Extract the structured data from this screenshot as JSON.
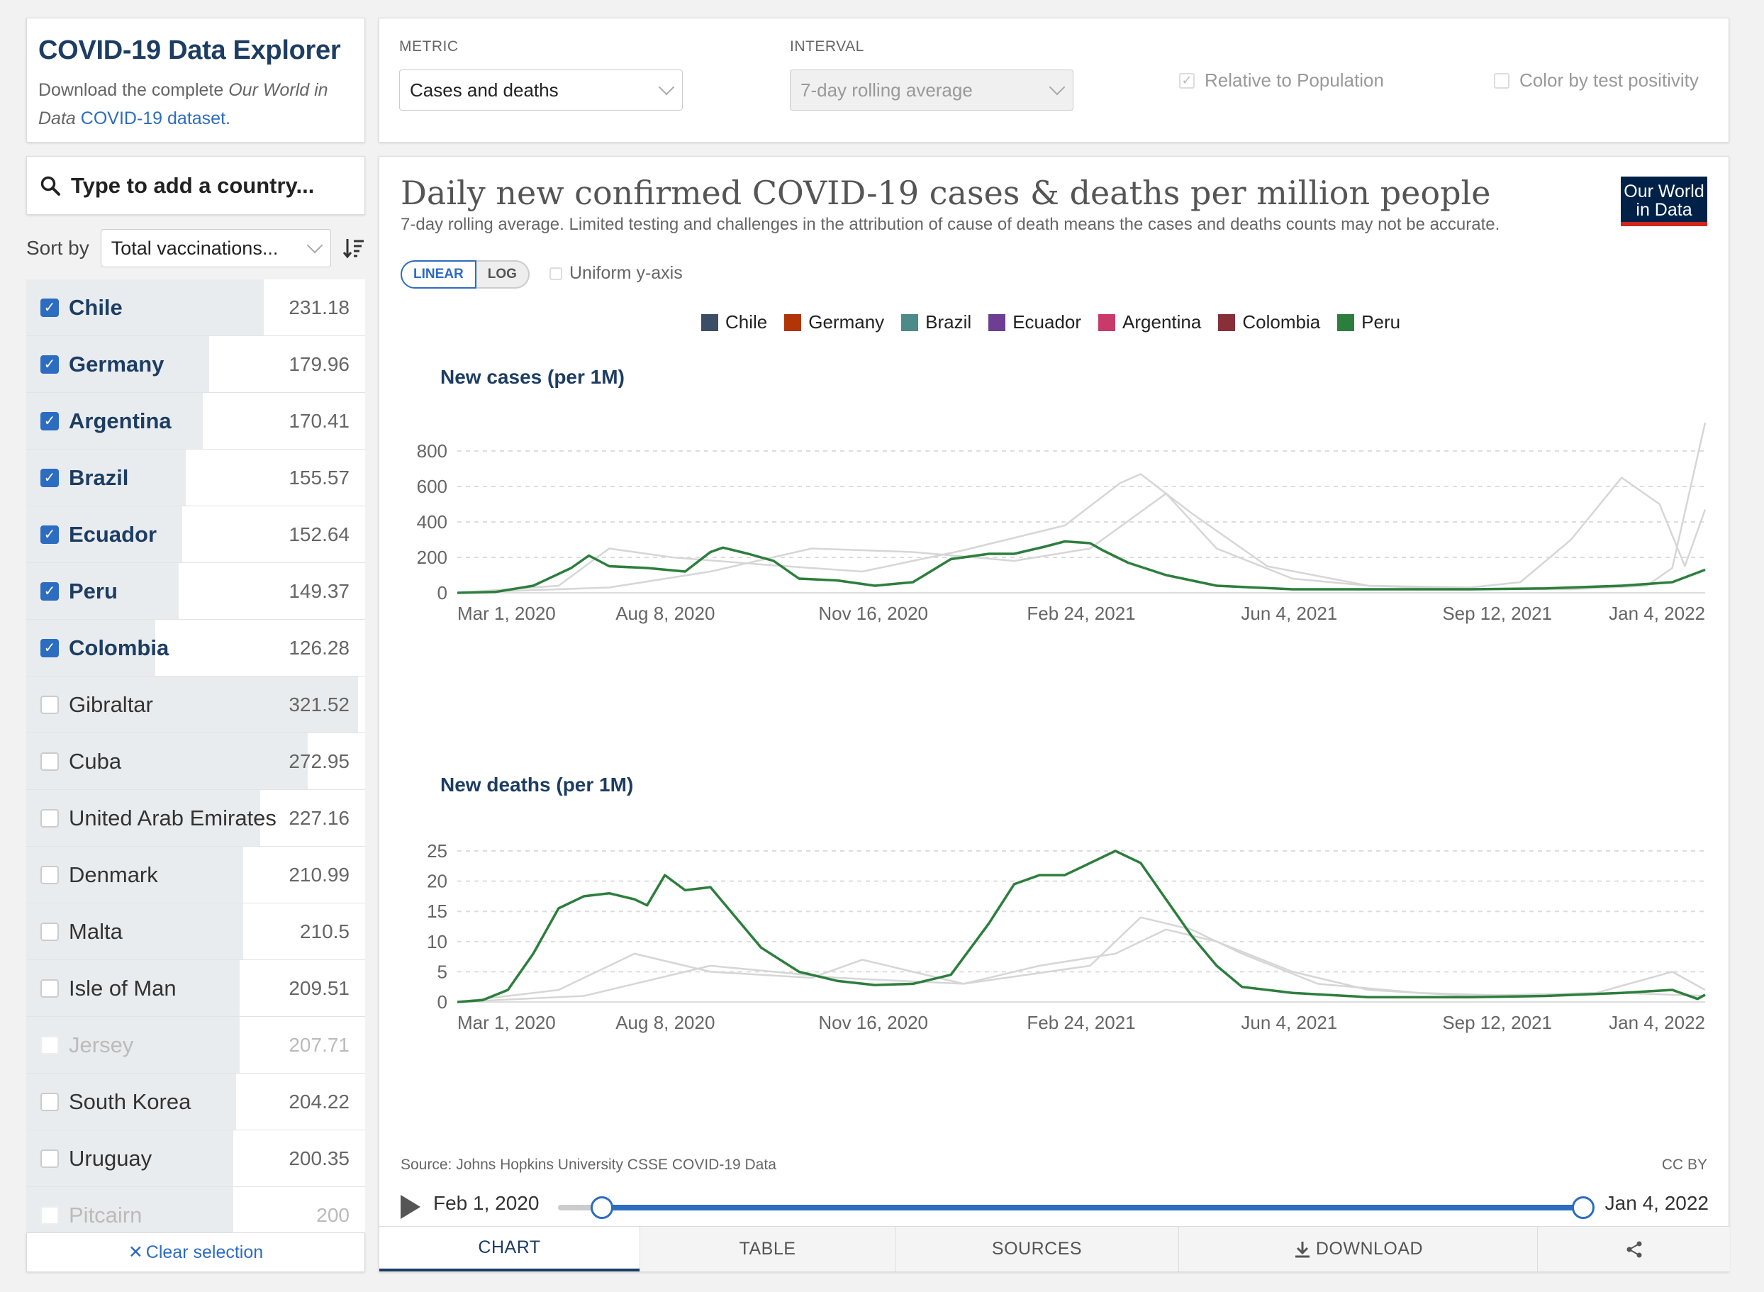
{
  "app": {
    "title": "COVID-19 Data Explorer",
    "desc_prefix": "Download the complete ",
    "desc_italic": "Our World in Data",
    "desc_link": "COVID-19 dataset."
  },
  "controls": {
    "metric_label": "METRIC",
    "metric_value": "Cases and deaths",
    "interval_label": "INTERVAL",
    "interval_value": "7-day rolling average",
    "relative_label": "Relative to Population",
    "positivity_label": "Color by test positivity"
  },
  "search": {
    "placeholder": "Type to add a country..."
  },
  "sort": {
    "label": "Sort by",
    "value": "Total vaccinations..."
  },
  "countries": [
    {
      "name": "Chile",
      "value": "231.18",
      "checked": true,
      "faded": false,
      "bar": 0.7
    },
    {
      "name": "Germany",
      "value": "179.96",
      "checked": true,
      "faded": false,
      "bar": 0.54
    },
    {
      "name": "Argentina",
      "value": "170.41",
      "checked": true,
      "faded": false,
      "bar": 0.52
    },
    {
      "name": "Brazil",
      "value": "155.57",
      "checked": true,
      "faded": false,
      "bar": 0.47
    },
    {
      "name": "Ecuador",
      "value": "152.64",
      "checked": true,
      "faded": false,
      "bar": 0.46
    },
    {
      "name": "Peru",
      "value": "149.37",
      "checked": true,
      "faded": false,
      "bar": 0.45
    },
    {
      "name": "Colombia",
      "value": "126.28",
      "checked": true,
      "faded": false,
      "bar": 0.38
    },
    {
      "name": "Gibraltar",
      "value": "321.52",
      "checked": false,
      "faded": false,
      "bar": 0.98
    },
    {
      "name": "Cuba",
      "value": "272.95",
      "checked": false,
      "faded": false,
      "bar": 0.83
    },
    {
      "name": "United Arab Emirates",
      "value": "227.16",
      "checked": false,
      "faded": false,
      "bar": 0.69
    },
    {
      "name": "Denmark",
      "value": "210.99",
      "checked": false,
      "faded": false,
      "bar": 0.64
    },
    {
      "name": "Malta",
      "value": "210.5",
      "checked": false,
      "faded": false,
      "bar": 0.64
    },
    {
      "name": "Isle of Man",
      "value": "209.51",
      "checked": false,
      "faded": false,
      "bar": 0.63
    },
    {
      "name": "Jersey",
      "value": "207.71",
      "checked": false,
      "faded": true,
      "bar": 0.63
    },
    {
      "name": "South Korea",
      "value": "204.22",
      "checked": false,
      "faded": false,
      "bar": 0.62
    },
    {
      "name": "Uruguay",
      "value": "200.35",
      "checked": false,
      "faded": false,
      "bar": 0.61
    },
    {
      "name": "Pitcairn",
      "value": "200",
      "checked": false,
      "faded": true,
      "bar": 0.61
    }
  ],
  "clear_selection": "Clear selection",
  "chart": {
    "title": "Daily new confirmed COVID-19 cases & deaths per million people",
    "subtitle": "7-day rolling average. Limited testing and challenges in the attribution of cause of death means the cases and deaths counts may not be accurate.",
    "logo_line1": "Our World",
    "logo_line2": "in Data",
    "linear_label": "LINEAR",
    "log_label": "LOG",
    "uniform_label": "Uniform y-axis",
    "legend": [
      {
        "name": "Chile",
        "color": "#3c4e66"
      },
      {
        "name": "Germany",
        "color": "#b13507"
      },
      {
        "name": "Brazil",
        "color": "#4c8b87"
      },
      {
        "name": "Ecuador",
        "color": "#6d3e91"
      },
      {
        "name": "Argentina",
        "color": "#c93a6b"
      },
      {
        "name": "Colombia",
        "color": "#883039"
      },
      {
        "name": "Peru",
        "color": "#2c7e3d"
      }
    ],
    "source": "Source: Johns Hopkins University CSSE COVID-19 Data",
    "license": "CC BY",
    "timeline_start": "Feb 1, 2020",
    "timeline_end": "Jan 4, 2022"
  },
  "chart_data": [
    {
      "type": "line",
      "title": "New cases (per 1M)",
      "ylim": [
        0,
        900
      ],
      "yticks": [
        0,
        200,
        400,
        600,
        800
      ],
      "xticks": [
        "Mar 1, 2020",
        "Aug 8, 2020",
        "Nov 16, 2020",
        "Feb 24, 2021",
        "Jun 4, 2021",
        "Sep 12, 2021",
        "Jan 4, 2022"
      ],
      "highlight_series": "Peru",
      "series": [
        {
          "name": "Peru",
          "x": [
            0,
            15,
            30,
            45,
            52,
            60,
            75,
            90,
            100,
            105,
            115,
            125,
            135,
            150,
            165,
            180,
            195,
            210,
            220,
            232,
            240,
            250,
            255,
            265,
            280,
            300,
            330,
            360,
            400,
            430,
            460,
            480,
            493
          ],
          "y": [
            0,
            5,
            40,
            140,
            210,
            150,
            140,
            120,
            230,
            255,
            220,
            180,
            80,
            70,
            40,
            60,
            190,
            220,
            220,
            260,
            290,
            280,
            240,
            170,
            100,
            40,
            20,
            20,
            20,
            25,
            40,
            60,
            130
          ]
        },
        {
          "name": "Chile",
          "x": [
            0,
            40,
            60,
            85,
            120,
            160,
            200,
            240,
            262,
            270,
            290,
            320,
            360,
            400,
            420,
            440,
            460,
            475,
            485,
            493
          ],
          "y": [
            0,
            40,
            250,
            200,
            160,
            120,
            240,
            380,
            620,
            670,
            450,
            150,
            40,
            30,
            60,
            300,
            650,
            500,
            150,
            470
          ]
        },
        {
          "name": "Argentina",
          "x": [
            0,
            60,
            100,
            140,
            180,
            220,
            250,
            280,
            300,
            330,
            360,
            400,
            440,
            470,
            480,
            493
          ],
          "y": [
            0,
            30,
            120,
            250,
            230,
            180,
            250,
            560,
            250,
            80,
            40,
            20,
            20,
            40,
            140,
            960
          ]
        }
      ]
    },
    {
      "type": "line",
      "title": "New deaths (per 1M)",
      "ylim": [
        0,
        27
      ],
      "yticks": [
        0,
        5,
        10,
        15,
        20,
        25
      ],
      "xticks": [
        "Mar 1, 2020",
        "Aug 8, 2020",
        "Nov 16, 2020",
        "Feb 24, 2021",
        "Jun 4, 2021",
        "Sep 12, 2021",
        "Jan 4, 2022"
      ],
      "highlight_series": "Peru",
      "series": [
        {
          "name": "Peru",
          "x": [
            0,
            10,
            20,
            30,
            40,
            50,
            60,
            70,
            75,
            82,
            90,
            100,
            110,
            120,
            135,
            150,
            165,
            180,
            195,
            210,
            220,
            230,
            240,
            250,
            260,
            270,
            280,
            290,
            300,
            310,
            330,
            360,
            400,
            430,
            460,
            480,
            490,
            493
          ],
          "y": [
            0,
            0.3,
            2,
            8,
            15.5,
            17.5,
            18,
            17,
            16,
            21,
            18.5,
            19,
            14,
            9,
            5,
            3.5,
            2.8,
            3,
            4.5,
            13,
            19.5,
            21,
            21,
            23,
            25,
            23,
            17,
            11,
            6,
            2.5,
            1.5,
            0.8,
            0.8,
            1,
            1.5,
            2,
            0.5,
            1.2
          ]
        },
        {
          "name": "Chile",
          "x": [
            0,
            40,
            70,
            100,
            140,
            160,
            200,
            230,
            260,
            280,
            300,
            330,
            360,
            400,
            450,
            480,
            493
          ],
          "y": [
            0,
            2,
            8,
            5,
            4,
            7,
            3,
            6,
            8,
            12,
            10,
            5,
            2,
            1,
            1.5,
            5,
            2
          ]
        },
        {
          "name": "Colombia",
          "x": [
            0,
            50,
            100,
            150,
            200,
            250,
            270,
            290,
            310,
            340,
            380,
            420,
            460,
            493
          ],
          "y": [
            0,
            1,
            6,
            4,
            3,
            6,
            14,
            12,
            8,
            3,
            1.5,
            1,
            1.5,
            1
          ]
        }
      ]
    }
  ]
}
